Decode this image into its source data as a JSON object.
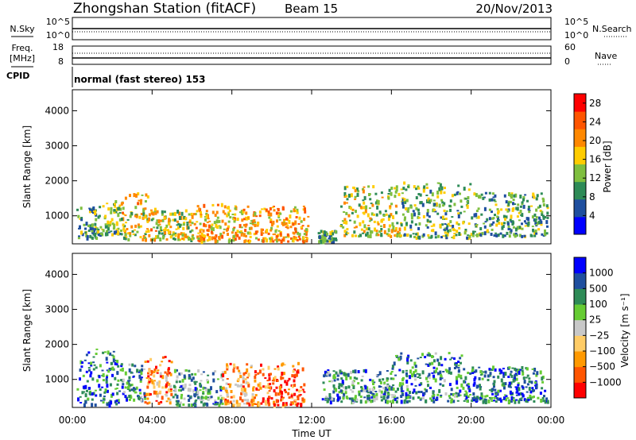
{
  "header": {
    "station": "Zhongshan Station (fitACF)",
    "beam": "Beam 15",
    "date": "20/Nov/2013"
  },
  "top_panel": {
    "nsky_label": "N.Sky",
    "nsearch_label": "N.Search",
    "left_ticks": [
      "10^5",
      "10^0"
    ],
    "right_ticks": [
      "10^5",
      "10^0"
    ]
  },
  "freq_panel": {
    "freq_label": [
      "Freq.",
      "[MHz]"
    ],
    "left_ticks": [
      "18",
      "8"
    ],
    "nave_label": "Nave",
    "right_ticks": [
      "60",
      "0"
    ]
  },
  "cpid": {
    "label": "CPID",
    "text": "normal (fast stereo) 153"
  },
  "colors": {
    "power": [
      "#0000ff",
      "#1f4f9f",
      "#2e8b57",
      "#7fbf3f",
      "#ffcc00",
      "#ff8800",
      "#ff5500",
      "#ff0000"
    ],
    "velocity": [
      "#ff0000",
      "#ff5500",
      "#ff9900",
      "#ffcc66",
      "#c8c8c8",
      "#66cc33",
      "#2e8b57",
      "#1f4f9f",
      "#0000ff"
    ]
  },
  "chart_data": [
    {
      "type": "heatmap",
      "quantity": "Power",
      "xlabel": "Time UT",
      "ylabel": "Slant Range [km]",
      "x_ticks": [
        "00:00",
        "04:00",
        "08:00",
        "12:00",
        "16:00",
        "20:00",
        "00:00"
      ],
      "xlim_hours": [
        0,
        24
      ],
      "y_ticks": [
        1000,
        2000,
        3000,
        4000
      ],
      "ylim": [
        200,
        4600
      ],
      "colorbar_label": "Power [dB]",
      "colorbar_ticks": [
        4,
        8,
        12,
        16,
        20,
        24,
        28
      ],
      "colorbar_range": [
        0,
        30
      ],
      "clusters": [
        {
          "t0": 0.2,
          "t1": 1.2,
          "r0": 400,
          "r1": 1300,
          "level": 0.35
        },
        {
          "t0": 1.2,
          "t1": 2.4,
          "r0": 500,
          "r1": 1500,
          "level": 0.4
        },
        {
          "t0": 2.4,
          "t1": 4.2,
          "r0": 350,
          "r1": 1700,
          "level": 0.55
        },
        {
          "t0": 4.2,
          "t1": 6.0,
          "r0": 350,
          "r1": 1200,
          "level": 0.5
        },
        {
          "t0": 6.0,
          "t1": 8.5,
          "r0": 300,
          "r1": 1400,
          "level": 0.6
        },
        {
          "t0": 8.5,
          "t1": 11.8,
          "r0": 300,
          "r1": 1300,
          "level": 0.65
        },
        {
          "t0": 12.3,
          "t1": 13.2,
          "r0": 300,
          "r1": 600,
          "level": 0.35
        },
        {
          "t0": 13.4,
          "t1": 16.5,
          "r0": 450,
          "r1": 1900,
          "level": 0.5
        },
        {
          "t0": 16.5,
          "t1": 20.0,
          "r0": 400,
          "r1": 2000,
          "level": 0.4
        },
        {
          "t0": 20.0,
          "t1": 23.8,
          "r0": 450,
          "r1": 1700,
          "level": 0.35
        }
      ]
    },
    {
      "type": "heatmap",
      "quantity": "Velocity",
      "xlabel": "Time UT",
      "ylabel": "Slant Range [km]",
      "x_ticks": [
        "00:00",
        "04:00",
        "08:00",
        "12:00",
        "16:00",
        "20:00",
        "00:00"
      ],
      "xlim_hours": [
        0,
        24
      ],
      "y_ticks": [
        1000,
        2000,
        3000,
        4000
      ],
      "ylim": [
        200,
        4600
      ],
      "colorbar_label": "Velocity [m s⁻¹]",
      "colorbar_ticks": [
        "1000",
        "500",
        "100",
        "25",
        "−25",
        "−100",
        "−500",
        "−1000"
      ],
      "clusters": [
        {
          "t0": 0.2,
          "t1": 2.4,
          "r0": 300,
          "r1": 1900,
          "level": 0.8
        },
        {
          "t0": 2.4,
          "t1": 3.6,
          "r0": 450,
          "r1": 1500,
          "level": 0.75
        },
        {
          "t0": 3.6,
          "t1": 5.0,
          "r0": 350,
          "r1": 1700,
          "level": 0.25
        },
        {
          "t0": 5.0,
          "t1": 7.5,
          "r0": 300,
          "r1": 1300,
          "level": 0.7
        },
        {
          "t0": 7.5,
          "t1": 9.0,
          "r0": 300,
          "r1": 1500,
          "level": 0.3
        },
        {
          "t0": 9.0,
          "t1": 11.6,
          "r0": 300,
          "r1": 1500,
          "level": 0.2
        },
        {
          "t0": 12.5,
          "t1": 16.0,
          "r0": 400,
          "r1": 1300,
          "level": 0.7
        },
        {
          "t0": 16.0,
          "t1": 19.5,
          "r0": 400,
          "r1": 1800,
          "level": 0.75
        },
        {
          "t0": 19.5,
          "t1": 23.8,
          "r0": 400,
          "r1": 1400,
          "level": 0.78
        }
      ]
    }
  ]
}
